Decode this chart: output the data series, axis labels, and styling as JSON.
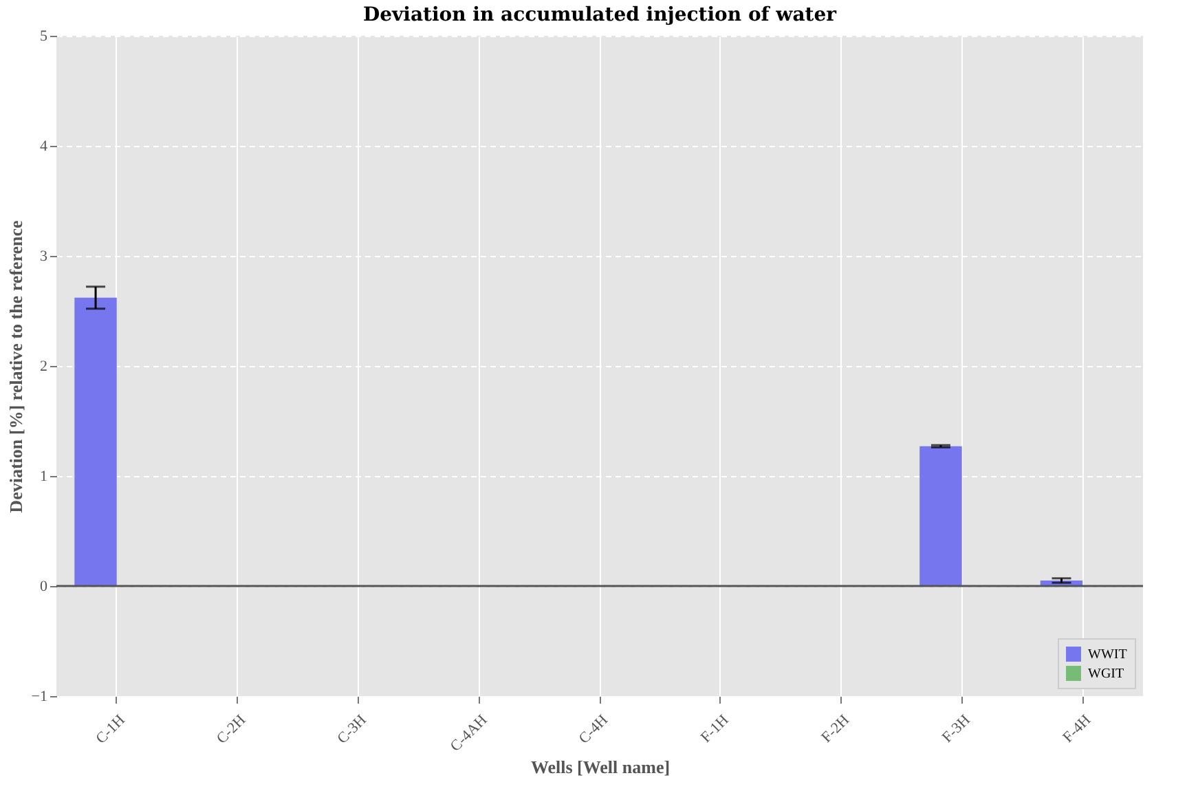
{
  "chart_data": {
    "type": "bar",
    "title": "Deviation in accumulated injection of water",
    "xlabel": "Wells [Well name]",
    "ylabel": "Deviation [%] relative to the reference",
    "categories": [
      "C-1H",
      "C-2H",
      "C-3H",
      "C-4AH",
      "C-4H",
      "F-1H",
      "F-2H",
      "F-3H",
      "F-4H"
    ],
    "series": [
      {
        "name": "WWIT",
        "color": "#7070ee",
        "values": [
          2.62,
          0,
          0,
          0,
          0,
          0,
          0,
          1.27,
          0.05
        ],
        "errors": [
          0.1,
          null,
          null,
          null,
          null,
          null,
          null,
          0.01,
          0.02
        ]
      },
      {
        "name": "WGIT",
        "color": "#70b870",
        "values": [
          0,
          0,
          0,
          0,
          0,
          0,
          0,
          0,
          0
        ]
      }
    ],
    "ylim": [
      -1,
      5
    ],
    "yticks": [
      -1,
      0,
      1,
      2,
      3,
      4,
      5
    ],
    "grid": true,
    "legend": "bottom right"
  }
}
